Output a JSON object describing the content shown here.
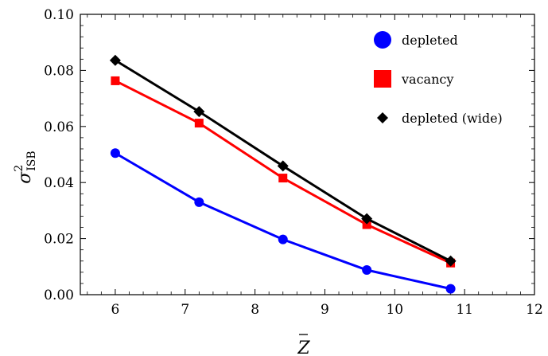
{
  "chart_data": {
    "type": "line",
    "title": "",
    "xlabel": "Z",
    "ylabel": {
      "base": "σ",
      "sup": "2",
      "sub": "ISB"
    },
    "xlim": [
      5.5,
      12
    ],
    "ylim": [
      0.0,
      0.1
    ],
    "x_ticks": [
      6,
      7,
      8,
      9,
      10,
      11,
      12
    ],
    "x_tick_labels": [
      "6",
      "7",
      "8",
      "9",
      "10",
      "11",
      "12"
    ],
    "y_ticks": [
      0.0,
      0.02,
      0.04,
      0.06,
      0.08,
      0.1
    ],
    "y_tick_labels": [
      "0.00",
      "0.02",
      "0.04",
      "0.06",
      "0.08",
      "0.10"
    ],
    "grid": false,
    "legend_position": "top-right",
    "series": [
      {
        "name": "depleted",
        "color": "#0000ff",
        "marker": "circle",
        "x": [
          6.0,
          7.2,
          8.4,
          9.6,
          10.8
        ],
        "y": [
          0.0505,
          0.033,
          0.0197,
          0.0088,
          0.0021
        ]
      },
      {
        "name": "vacancy",
        "color": "#ff0000",
        "marker": "square",
        "x": [
          6.0,
          7.2,
          8.4,
          9.6,
          10.8
        ],
        "y": [
          0.0763,
          0.0612,
          0.0416,
          0.025,
          0.0113
        ]
      },
      {
        "name": "depleted (wide)",
        "color": "#000000",
        "marker": "diamond",
        "x": [
          6.0,
          7.2,
          8.4,
          9.6,
          10.8
        ],
        "y": [
          0.0836,
          0.0653,
          0.0459,
          0.0271,
          0.012
        ]
      }
    ],
    "legend_order": [
      0,
      1,
      2
    ]
  }
}
